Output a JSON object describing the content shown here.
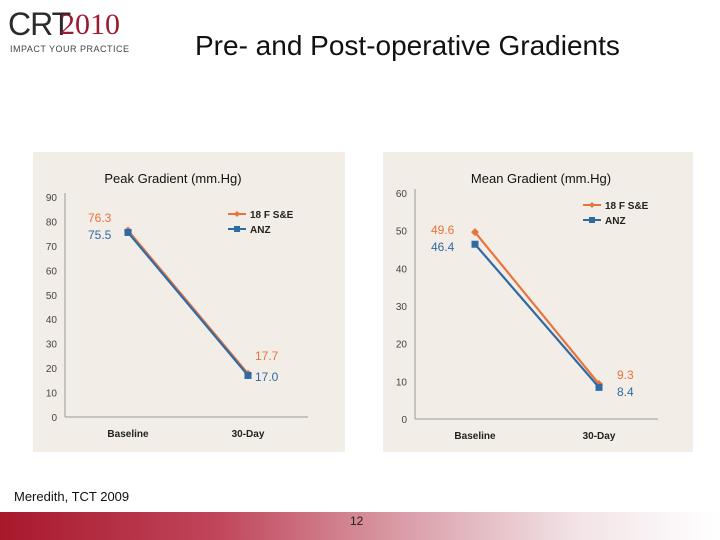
{
  "logo": {
    "brand": "CRT",
    "year": "2010",
    "tagline": "IMPACT YOUR PRACTICE"
  },
  "slide": {
    "title": "Pre- and Post-operative Gradients",
    "source": "Meredith, TCT 2009",
    "page_number": "12"
  },
  "colors": {
    "s18": "#e8743b",
    "anz": "#2f6aa3",
    "accent": "#a8182b",
    "panel_bg": "#f2ede6"
  },
  "chart_data": [
    {
      "type": "line",
      "title": "Peak Gradient (mm.Hg)",
      "categories": [
        "Baseline",
        "30-Day"
      ],
      "ylim": [
        0,
        90
      ],
      "yticks": [
        0,
        10,
        20,
        30,
        40,
        50,
        60,
        70,
        80,
        90
      ],
      "legend_position": "top-right",
      "series": [
        {
          "name": "18 F S&E",
          "values": [
            76.3,
            17.7
          ],
          "labels": [
            "76.3",
            "17.7"
          ]
        },
        {
          "name": "ANZ",
          "values": [
            75.5,
            17.0
          ],
          "labels": [
            "75.5",
            "17.0"
          ]
        }
      ]
    },
    {
      "type": "line",
      "title": "Mean Gradient (mm.Hg)",
      "categories": [
        "Baseline",
        "30-Day"
      ],
      "ylim": [
        0,
        60
      ],
      "yticks": [
        0,
        10,
        20,
        30,
        40,
        50,
        60
      ],
      "legend_position": "top-right",
      "series": [
        {
          "name": "18 F S&E",
          "values": [
            49.6,
            9.3
          ],
          "labels": [
            "49.6",
            "9.3"
          ]
        },
        {
          "name": "ANZ",
          "values": [
            46.4,
            8.4
          ],
          "labels": [
            "46.4",
            "8.4"
          ]
        }
      ]
    }
  ]
}
